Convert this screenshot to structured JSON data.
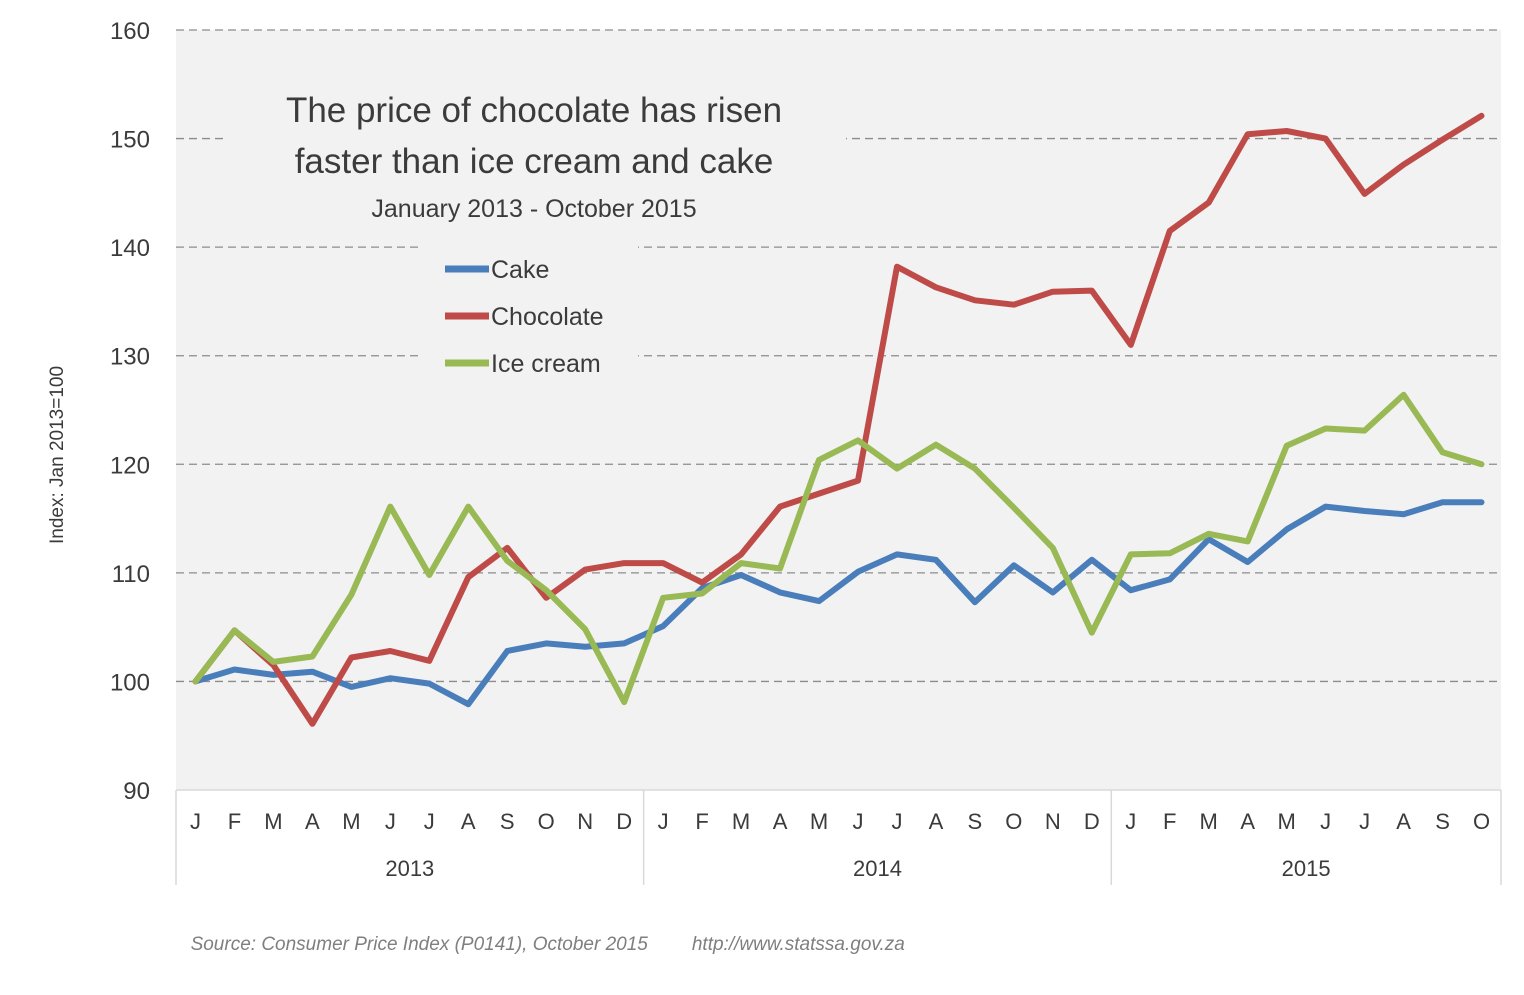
{
  "chart_data": {
    "type": "line",
    "title": "The price of chocolate has risen",
    "title_line2": "faster than ice cream and cake",
    "subtitle": "January 2013 - October 2015",
    "ylabel": "Index: Jan 2013=100",
    "ylim": [
      90,
      160
    ],
    "yticks": [
      90,
      100,
      110,
      120,
      130,
      140,
      150,
      160
    ],
    "grid": true,
    "legend_position": "upper-left",
    "x_months": [
      "J",
      "F",
      "M",
      "A",
      "M",
      "J",
      "J",
      "A",
      "S",
      "O",
      "N",
      "D",
      "J",
      "F",
      "M",
      "A",
      "M",
      "J",
      "J",
      "A",
      "S",
      "O",
      "N",
      "D",
      "J",
      "F",
      "M",
      "A",
      "M",
      "J",
      "J",
      "A",
      "S",
      "O"
    ],
    "x_years": [
      {
        "label": "2013",
        "months": 12
      },
      {
        "label": "2014",
        "months": 12
      },
      {
        "label": "2015",
        "months": 10
      }
    ],
    "series": [
      {
        "name": "Cake",
        "color": "#4a7ebb",
        "values": [
          100,
          101.1,
          100.6,
          100.9,
          99.5,
          100.3,
          99.8,
          97.9,
          102.8,
          103.5,
          103.2,
          103.5,
          105.1,
          108.6,
          109.8,
          108.2,
          107.4,
          110.1,
          111.7,
          111.2,
          107.3,
          110.7,
          108.2,
          111.2,
          108.4,
          109.4,
          113.1,
          111.0,
          114.0,
          116.1,
          115.7,
          115.4,
          116.5,
          116.5
        ]
      },
      {
        "name": "Chocolate",
        "color": "#be4b48",
        "values": [
          100,
          104.7,
          101.5,
          96.1,
          102.2,
          102.8,
          101.9,
          109.6,
          112.3,
          107.7,
          110.3,
          110.9,
          110.9,
          109.1,
          111.7,
          116.1,
          117.3,
          118.5,
          138.2,
          136.3,
          135.1,
          134.7,
          135.9,
          136.0,
          131.0,
          141.5,
          144.1,
          150.4,
          150.7,
          150.0,
          144.9,
          147.6,
          149.9,
          152.1
        ]
      },
      {
        "name": "Ice cream",
        "color": "#98b954",
        "values": [
          100,
          104.7,
          101.8,
          102.3,
          108.0,
          116.1,
          109.8,
          116.1,
          111.1,
          108.4,
          104.8,
          98.1,
          107.7,
          108.1,
          110.9,
          110.4,
          120.4,
          122.2,
          119.6,
          121.8,
          119.6,
          116.0,
          112.3,
          104.5,
          111.7,
          111.8,
          113.6,
          112.9,
          121.7,
          123.3,
          123.1,
          126.4,
          121.1,
          120.0
        ]
      }
    ]
  },
  "footer": {
    "source": "Source: Consumer Price Index (P0141), October 2015",
    "url": "http://www.statssa.gov.za"
  }
}
